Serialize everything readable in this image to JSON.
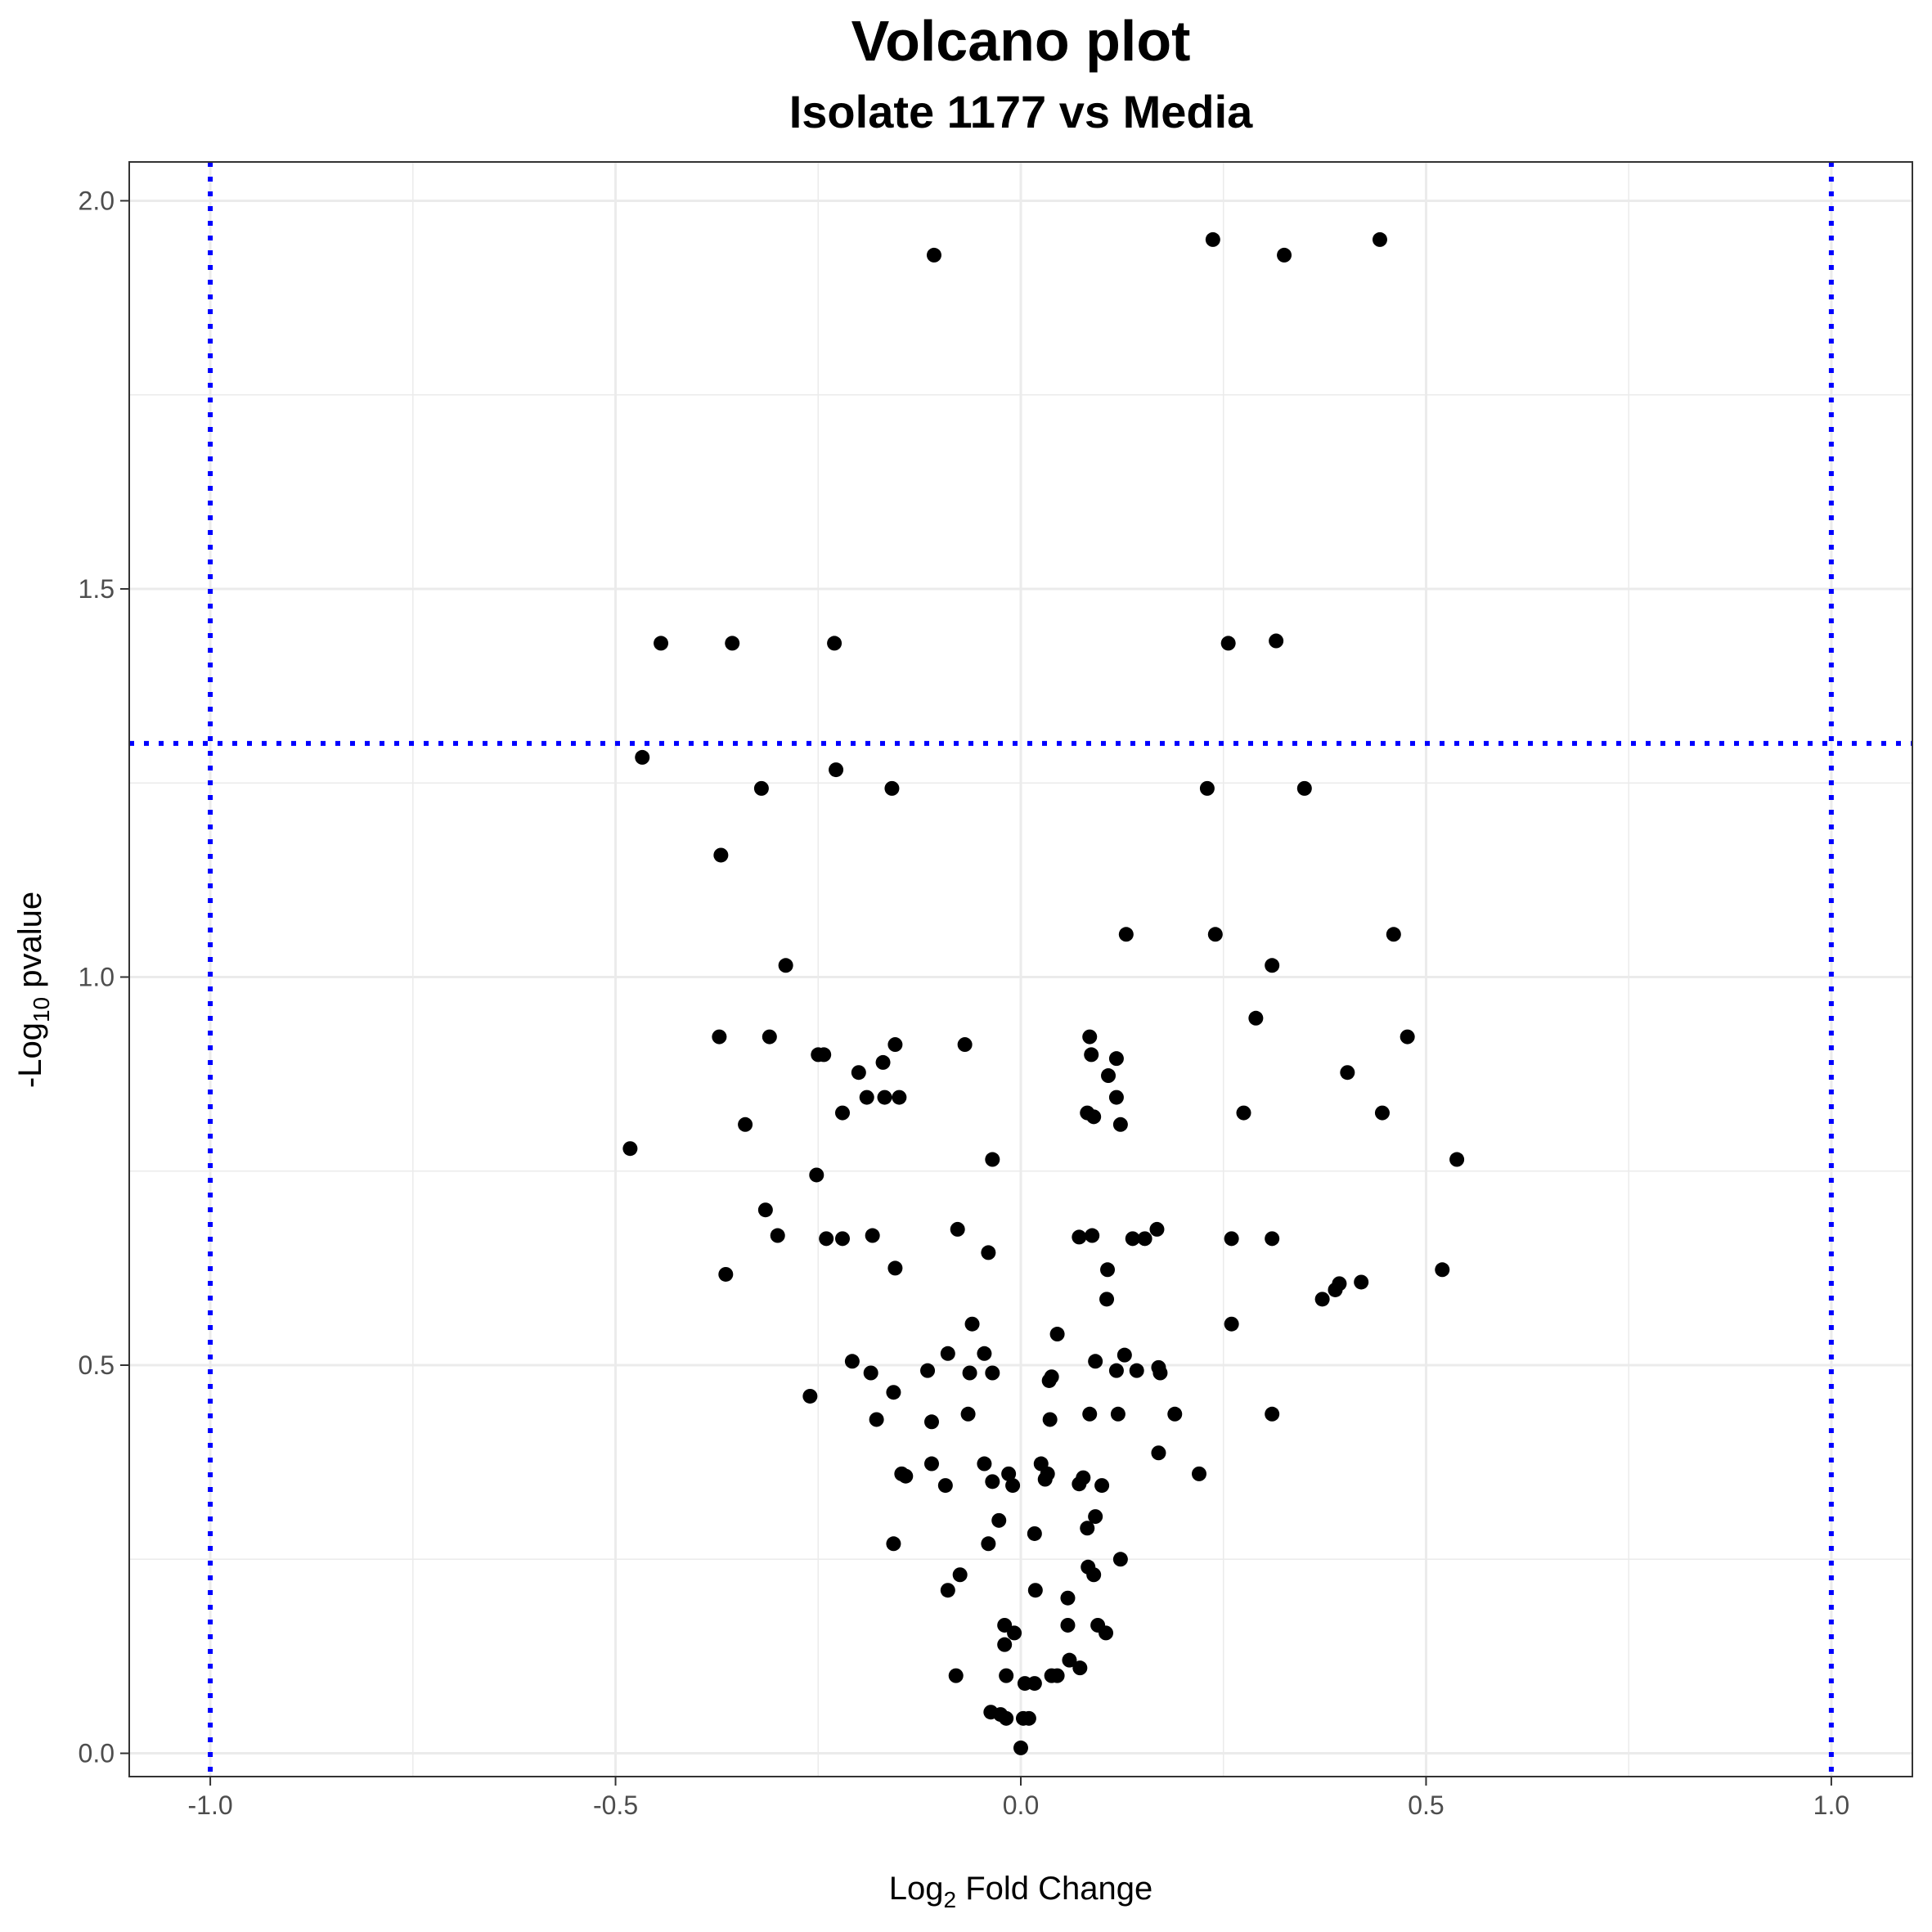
{
  "chart_data": {
    "type": "scatter",
    "title": "Volcano plot",
    "subtitle": "Isolate 1177 vs Media",
    "xlabel": {
      "prefix": "Log",
      "sub": "2",
      "suffix": " Fold Change"
    },
    "ylabel": {
      "prefix": "-Log",
      "sub": "10",
      "suffix": " pvalue"
    },
    "xlim": [
      -1.1,
      1.1
    ],
    "ylim": [
      -0.03,
      2.05
    ],
    "xticks": [
      -1.0,
      -0.5,
      0.0,
      0.5,
      1.0
    ],
    "xtick_labels": [
      "-1.0",
      "-0.5",
      "0.0",
      "0.5",
      "1.0"
    ],
    "yticks": [
      0.0,
      0.5,
      1.0,
      1.5,
      2.0
    ],
    "ytick_labels": [
      "0.0",
      "0.5",
      "1.0",
      "1.5",
      "2.0"
    ],
    "grid": true,
    "point_color": "#000000",
    "threshold_color": "#0000ff",
    "thresholds": {
      "x": [
        -1.0,
        1.0
      ],
      "y": [
        1.301
      ]
    },
    "points": [
      [
        -0.107,
        1.93
      ],
      [
        0.237,
        1.95
      ],
      [
        0.325,
        1.93
      ],
      [
        0.443,
        1.95
      ],
      [
        -0.444,
        1.43
      ],
      [
        -0.356,
        1.43
      ],
      [
        -0.23,
        1.43
      ],
      [
        0.256,
        1.43
      ],
      [
        0.315,
        1.433
      ],
      [
        -0.467,
        1.283
      ],
      [
        -0.228,
        1.267
      ],
      [
        -0.32,
        1.243
      ],
      [
        -0.159,
        1.243
      ],
      [
        0.23,
        1.243
      ],
      [
        0.35,
        1.243
      ],
      [
        -0.37,
        1.157
      ],
      [
        0.13,
        1.055
      ],
      [
        0.24,
        1.055
      ],
      [
        0.46,
        1.055
      ],
      [
        -0.29,
        1.015
      ],
      [
        0.31,
        1.015
      ],
      [
        0.29,
        0.947
      ],
      [
        -0.372,
        0.923
      ],
      [
        -0.31,
        0.923
      ],
      [
        0.085,
        0.923
      ],
      [
        0.477,
        0.923
      ],
      [
        -0.25,
        0.9
      ],
      [
        -0.243,
        0.9
      ],
      [
        -0.155,
        0.913
      ],
      [
        -0.069,
        0.913
      ],
      [
        0.087,
        0.9
      ],
      [
        -0.17,
        0.89
      ],
      [
        0.118,
        0.895
      ],
      [
        -0.2,
        0.877
      ],
      [
        0.108,
        0.873
      ],
      [
        0.403,
        0.877
      ],
      [
        -0.19,
        0.845
      ],
      [
        -0.168,
        0.845
      ],
      [
        -0.15,
        0.845
      ],
      [
        0.118,
        0.845
      ],
      [
        -0.22,
        0.825
      ],
      [
        0.082,
        0.825
      ],
      [
        0.09,
        0.82
      ],
      [
        0.275,
        0.825
      ],
      [
        0.446,
        0.825
      ],
      [
        -0.34,
        0.81
      ],
      [
        0.123,
        0.81
      ],
      [
        -0.482,
        0.779
      ],
      [
        -0.035,
        0.765
      ],
      [
        0.538,
        0.765
      ],
      [
        -0.252,
        0.745
      ],
      [
        -0.315,
        0.7
      ],
      [
        -0.078,
        0.675
      ],
      [
        0.168,
        0.675
      ],
      [
        -0.3,
        0.667
      ],
      [
        0.072,
        0.665
      ],
      [
        0.088,
        0.667
      ],
      [
        -0.24,
        0.663
      ],
      [
        -0.22,
        0.663
      ],
      [
        -0.183,
        0.667
      ],
      [
        0.138,
        0.663
      ],
      [
        0.153,
        0.663
      ],
      [
        0.26,
        0.663
      ],
      [
        0.31,
        0.663
      ],
      [
        -0.04,
        0.645
      ],
      [
        0.107,
        0.623
      ],
      [
        -0.155,
        0.625
      ],
      [
        0.52,
        0.623
      ],
      [
        -0.364,
        0.617
      ],
      [
        0.42,
        0.607
      ],
      [
        0.393,
        0.605
      ],
      [
        0.388,
        0.597
      ],
      [
        0.372,
        0.585
      ],
      [
        0.106,
        0.585
      ],
      [
        -0.06,
        0.553
      ],
      [
        0.26,
        0.553
      ],
      [
        0.045,
        0.54
      ],
      [
        -0.09,
        0.515
      ],
      [
        -0.045,
        0.515
      ],
      [
        0.128,
        0.513
      ],
      [
        -0.208,
        0.505
      ],
      [
        0.092,
        0.505
      ],
      [
        -0.115,
        0.493
      ],
      [
        -0.063,
        0.49
      ],
      [
        -0.035,
        0.49
      ],
      [
        0.118,
        0.493
      ],
      [
        0.143,
        0.493
      ],
      [
        0.17,
        0.497
      ],
      [
        0.172,
        0.49
      ],
      [
        -0.185,
        0.49
      ],
      [
        0.038,
        0.485
      ],
      [
        0.035,
        0.48
      ],
      [
        -0.157,
        0.465
      ],
      [
        -0.26,
        0.46
      ],
      [
        -0.065,
        0.437
      ],
      [
        0.085,
        0.437
      ],
      [
        0.12,
        0.437
      ],
      [
        0.19,
        0.437
      ],
      [
        0.31,
        0.437
      ],
      [
        -0.178,
        0.43
      ],
      [
        -0.11,
        0.427
      ],
      [
        0.036,
        0.43
      ],
      [
        0.17,
        0.387
      ],
      [
        -0.11,
        0.373
      ],
      [
        -0.045,
        0.373
      ],
      [
        0.025,
        0.373
      ],
      [
        -0.147,
        0.36
      ],
      [
        -0.142,
        0.357
      ],
      [
        -0.015,
        0.36
      ],
      [
        0.033,
        0.36
      ],
      [
        0.03,
        0.353
      ],
      [
        0.077,
        0.355
      ],
      [
        0.22,
        0.36
      ],
      [
        -0.035,
        0.35
      ],
      [
        -0.01,
        0.345
      ],
      [
        0.072,
        0.347
      ],
      [
        0.1,
        0.345
      ],
      [
        -0.093,
        0.345
      ],
      [
        -0.027,
        0.3
      ],
      [
        0.092,
        0.305
      ],
      [
        0.082,
        0.29
      ],
      [
        0.017,
        0.283
      ],
      [
        -0.157,
        0.27
      ],
      [
        -0.04,
        0.27
      ],
      [
        0.123,
        0.25
      ],
      [
        0.083,
        0.24
      ],
      [
        -0.075,
        0.23
      ],
      [
        0.09,
        0.23
      ],
      [
        0.018,
        0.21
      ],
      [
        -0.09,
        0.21
      ],
      [
        0.058,
        0.2
      ],
      [
        -0.02,
        0.165
      ],
      [
        0.058,
        0.165
      ],
      [
        0.095,
        0.165
      ],
      [
        -0.008,
        0.155
      ],
      [
        0.105,
        0.155
      ],
      [
        -0.02,
        0.14
      ],
      [
        0.06,
        0.12
      ],
      [
        0.073,
        0.11
      ],
      [
        0.038,
        0.1
      ],
      [
        0.045,
        0.1
      ],
      [
        -0.08,
        0.1
      ],
      [
        -0.018,
        0.1
      ],
      [
        0.005,
        0.09
      ],
      [
        0.017,
        0.09
      ],
      [
        -0.037,
        0.053
      ],
      [
        -0.025,
        0.05
      ],
      [
        -0.018,
        0.045
      ],
      [
        0.003,
        0.045
      ],
      [
        0.01,
        0.045
      ],
      [
        0.0,
        0.007
      ]
    ]
  }
}
